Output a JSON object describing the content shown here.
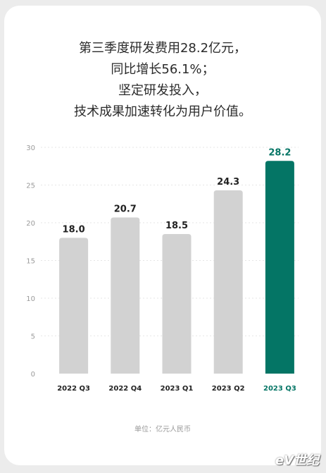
{
  "headline": [
    "第三季度研发费用28.2亿元，",
    "同比增长56.1%；",
    "坚定研发投入，",
    "技术成果加速转化为用户价值。"
  ],
  "unit_label": "单位：亿元人民币",
  "watermark": "eV世纪",
  "colors": {
    "bar_default": "#d2d2d2",
    "bar_highlight": "#047565",
    "label_default": "#222222",
    "label_highlight": "#047565",
    "tick_label": "#9a9a9a",
    "grid": "#e6e6e6"
  },
  "chart_data": {
    "type": "bar",
    "categories": [
      "2022 Q3",
      "2022 Q4",
      "2023 Q1",
      "2023 Q2",
      "2023 Q3"
    ],
    "values": [
      18.0,
      20.7,
      18.5,
      24.3,
      28.2
    ],
    "value_labels": [
      "18.0",
      "20.7",
      "18.5",
      "24.3",
      "28.2"
    ],
    "highlight_index": 4,
    "y_ticks": [
      0,
      5,
      10,
      15,
      20,
      25,
      30
    ],
    "ylim": [
      0,
      30
    ],
    "grid": true,
    "legend": "none",
    "title": "",
    "xlabel": "",
    "ylabel": ""
  }
}
